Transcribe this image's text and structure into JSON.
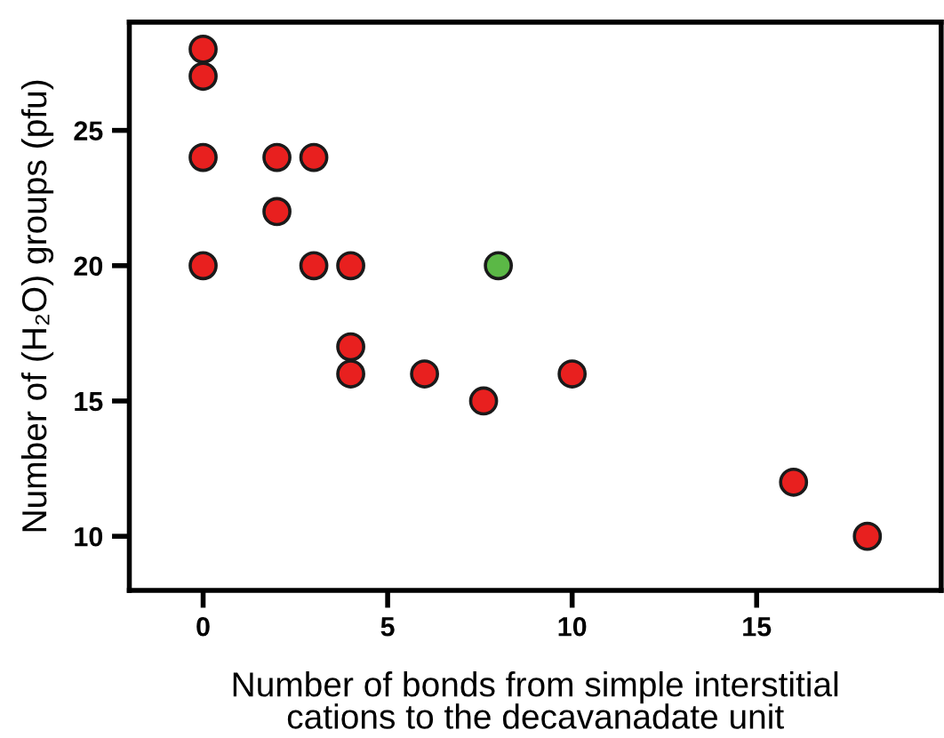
{
  "chart_data": {
    "type": "scatter",
    "xlabel": "Number of bonds from simple interstitial\ncations to the decavanadate unit",
    "ylabel": "Number of (H₂O) groups (pfu)",
    "xlim": [
      -2,
      20
    ],
    "ylim": [
      8,
      29
    ],
    "xticks": [
      0,
      5,
      10,
      15
    ],
    "yticks": [
      10,
      15,
      20,
      25
    ],
    "marker": "circle",
    "grid": false,
    "legend": false,
    "series": [
      {
        "color": "#e8201f",
        "x": [
          0,
          0,
          0,
          0,
          2,
          3,
          2,
          3,
          4,
          4,
          4,
          6,
          7.6,
          10,
          16,
          18
        ],
        "values": [
          28,
          27,
          24,
          20,
          24,
          24,
          22,
          20,
          20,
          17,
          16,
          16,
          15,
          16,
          12,
          10
        ]
      },
      {
        "color": "#5bb846",
        "x": [
          8
        ],
        "values": [
          20
        ]
      }
    ]
  }
}
